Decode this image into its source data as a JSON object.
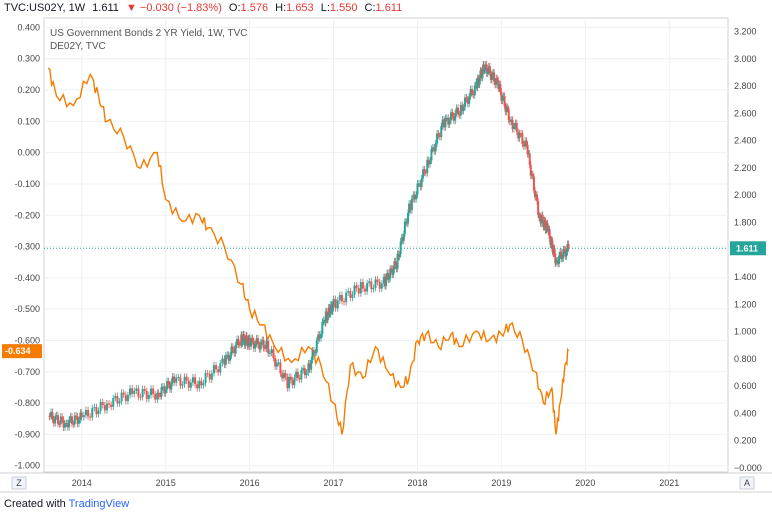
{
  "header": {
    "symbol": "TVC:US02Y, 1W",
    "last": "1.611",
    "arrow": "▼",
    "change": "−0.030 (−1.83%)",
    "o_label": "O:",
    "o": "1.576",
    "h_label": "H:",
    "h": "1.653",
    "l_label": "L:",
    "l": "1.550",
    "c_label": "C:",
    "c": "1.611"
  },
  "footer": {
    "created_with": "Created with",
    "brand": "TradingView"
  },
  "colors": {
    "us": "#26a69a",
    "us_down": "#ef5350",
    "de": "#f57c00",
    "tag_us": "#26a69a",
    "tag_de": "#f57c00"
  },
  "chart_data": {
    "type": "line",
    "title": "US Government Bonds 2 YR Yield, 1W, TVC",
    "series": [
      {
        "name": "US02Y",
        "legend": "US Government Bonds 2 YR Yield, 1W, TVC",
        "axis": "right",
        "style": "candles",
        "x": [
          2013.6,
          2013.8,
          2014.0,
          2014.3,
          2014.6,
          2014.9,
          2015.1,
          2015.4,
          2015.7,
          2015.9,
          2016.0,
          2016.2,
          2016.45,
          2016.7,
          2016.9,
          2017.0,
          2017.3,
          2017.6,
          2017.75,
          2017.9,
          2018.1,
          2018.3,
          2018.5,
          2018.7,
          2018.8,
          2018.95,
          2019.1,
          2019.3,
          2019.45,
          2019.55,
          2019.65,
          2019.8
        ],
        "values": [
          0.38,
          0.33,
          0.37,
          0.47,
          0.55,
          0.54,
          0.64,
          0.62,
          0.78,
          0.95,
          0.92,
          0.9,
          0.62,
          0.73,
          1.1,
          1.2,
          1.32,
          1.36,
          1.5,
          1.9,
          2.2,
          2.52,
          2.62,
          2.8,
          2.95,
          2.82,
          2.56,
          2.35,
          1.85,
          1.75,
          1.52,
          1.611
        ]
      },
      {
        "name": "DE02Y",
        "legend": "DE02Y, TVC",
        "axis": "left",
        "style": "line",
        "x": [
          2013.6,
          2013.7,
          2013.9,
          2014.1,
          2014.2,
          2014.3,
          2014.5,
          2014.7,
          2014.9,
          2015.0,
          2015.2,
          2015.4,
          2015.5,
          2015.7,
          2015.9,
          2016.0,
          2016.15,
          2016.3,
          2016.5,
          2016.7,
          2016.85,
          2017.0,
          2017.1,
          2017.2,
          2017.35,
          2017.5,
          2017.65,
          2017.8,
          2017.9,
          2018.0,
          2018.1,
          2018.25,
          2018.4,
          2018.5,
          2018.7,
          2018.85,
          2019.0,
          2019.1,
          2019.25,
          2019.4,
          2019.5,
          2019.6,
          2019.65,
          2019.7,
          2019.75,
          2019.8
        ],
        "values": [
          0.27,
          0.18,
          0.15,
          0.25,
          0.18,
          0.1,
          0.05,
          -0.05,
          0.0,
          -0.15,
          -0.22,
          -0.2,
          -0.24,
          -0.3,
          -0.42,
          -0.5,
          -0.55,
          -0.62,
          -0.67,
          -0.62,
          -0.68,
          -0.8,
          -0.9,
          -0.68,
          -0.72,
          -0.62,
          -0.7,
          -0.75,
          -0.72,
          -0.6,
          -0.58,
          -0.62,
          -0.58,
          -0.62,
          -0.57,
          -0.6,
          -0.58,
          -0.55,
          -0.6,
          -0.7,
          -0.8,
          -0.75,
          -0.9,
          -0.8,
          -0.7,
          -0.634
        ]
      }
    ],
    "x_ticks": [
      "2014",
      "2015",
      "2016",
      "2017",
      "2018",
      "2019",
      "2020",
      "2021"
    ],
    "x_tick_values": [
      2014,
      2015,
      2016,
      2017,
      2018,
      2019,
      2020,
      2021
    ],
    "xlim": [
      2013.55,
      2021.7
    ],
    "y_left": {
      "ticks": [
        "0.400",
        "0.300",
        "0.200",
        "0.100",
        "0.000",
        "-0.100",
        "-0.200",
        "-0.300",
        "-0.400",
        "-0.500",
        "-0.600",
        "-0.700",
        "-0.800",
        "-0.900",
        "-1.000"
      ],
      "tick_values": [
        0.4,
        0.3,
        0.2,
        0.1,
        0.0,
        -0.1,
        -0.2,
        -0.3,
        -0.4,
        -0.5,
        -0.6,
        -0.7,
        -0.8,
        -0.9,
        -1.0
      ],
      "range": [
        -1.02,
        0.43
      ]
    },
    "y_right": {
      "ticks": [
        "3.200",
        "3.000",
        "2.800",
        "2.600",
        "2.400",
        "2.200",
        "2.000",
        "1.800",
        "1.600",
        "1.400",
        "1.200",
        "1.000",
        "0.800",
        "0.600",
        "0.400",
        "0.200",
        "−0.000"
      ],
      "tick_values": [
        3.2,
        3.0,
        2.8,
        2.6,
        2.4,
        2.2,
        2.0,
        1.8,
        1.6,
        1.4,
        1.2,
        1.0,
        0.8,
        0.6,
        0.4,
        0.2,
        0.0
      ],
      "range": [
        -0.03,
        3.3
      ]
    },
    "last_value_tags": {
      "us": "1.611",
      "de": "-0.634"
    },
    "grid": true,
    "corner_left": "Z",
    "corner_right": "A"
  }
}
